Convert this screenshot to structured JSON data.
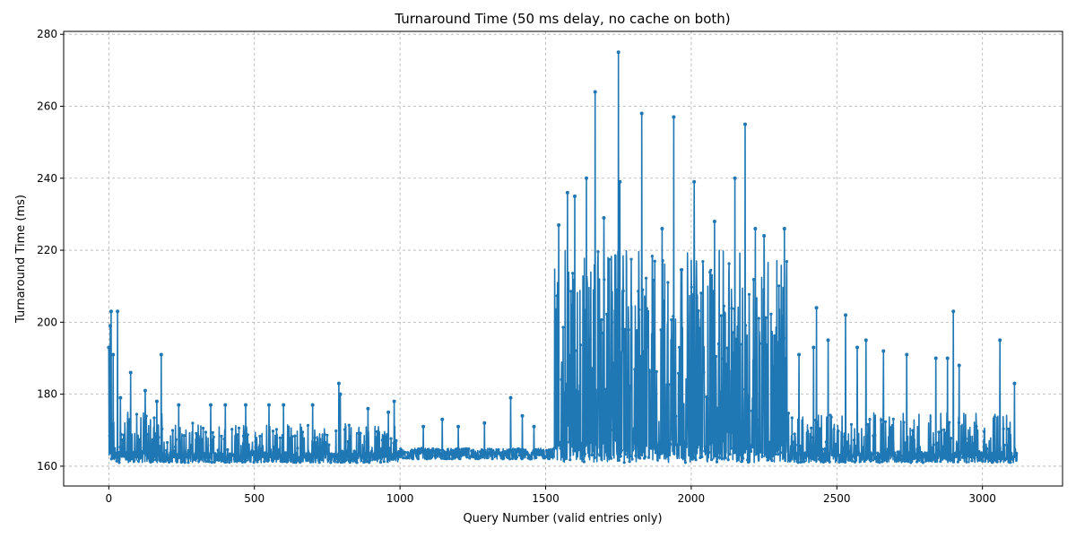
{
  "chart_data": {
    "type": "line",
    "title": "Turnaround Time (50 ms delay, no cache on both)",
    "xlabel": "Query Number (valid entries only)",
    "ylabel": "Turnaround Time (ms)",
    "xlim": [
      -155,
      3275
    ],
    "ylim": [
      154.5,
      280.8
    ],
    "xticks": [
      0,
      500,
      1000,
      1500,
      2000,
      2500,
      3000
    ],
    "yticks": [
      160,
      180,
      200,
      220,
      240,
      260,
      280
    ],
    "grid": true,
    "marker": "circle",
    "color": "#1f77b4",
    "n_points": 3120,
    "series": [
      {
        "segments": [
          {
            "x_start": 0,
            "x_end": 200,
            "base": 161,
            "typical_high": 175,
            "spikes": [
              [
                0,
                193
              ],
              [
                5,
                199
              ],
              [
                8,
                203
              ],
              [
                15,
                191
              ],
              [
                30,
                203
              ],
              [
                40,
                179
              ],
              [
                75,
                186
              ],
              [
                125,
                181
              ],
              [
                180,
                191
              ],
              [
                165,
                178
              ]
            ]
          },
          {
            "x_start": 200,
            "x_end": 1000,
            "base": 161,
            "typical_high": 172,
            "spikes": [
              [
                240,
                177
              ],
              [
                350,
                177
              ],
              [
                400,
                177
              ],
              [
                470,
                177
              ],
              [
                550,
                177
              ],
              [
                600,
                177
              ],
              [
                700,
                177
              ],
              [
                790,
                183
              ],
              [
                795,
                180
              ],
              [
                890,
                176
              ],
              [
                960,
                175
              ],
              [
                980,
                178
              ]
            ]
          },
          {
            "x_start": 1000,
            "x_end": 1530,
            "base": 162,
            "typical_high": 165,
            "spikes": [
              [
                1080,
                171
              ],
              [
                1145,
                173
              ],
              [
                1200,
                171
              ],
              [
                1290,
                172
              ],
              [
                1380,
                179
              ],
              [
                1420,
                174
              ],
              [
                1460,
                171
              ]
            ]
          },
          {
            "x_start": 1530,
            "x_end": 2330,
            "base": 161,
            "typical_high": 220,
            "spikes": [
              [
                1545,
                227
              ],
              [
                1575,
                236
              ],
              [
                1600,
                235
              ],
              [
                1640,
                240
              ],
              [
                1670,
                264
              ],
              [
                1700,
                229
              ],
              [
                1750,
                275
              ],
              [
                1755,
                239
              ],
              [
                1830,
                258
              ],
              [
                1900,
                226
              ],
              [
                1940,
                257
              ],
              [
                2010,
                239
              ],
              [
                2080,
                228
              ],
              [
                2150,
                240
              ],
              [
                2185,
                255
              ],
              [
                2220,
                226
              ],
              [
                2250,
                224
              ],
              [
                2320,
                226
              ]
            ]
          },
          {
            "x_start": 2330,
            "x_end": 3120,
            "base": 161,
            "typical_high": 175,
            "spikes": [
              [
                2370,
                191
              ],
              [
                2420,
                193
              ],
              [
                2430,
                204
              ],
              [
                2470,
                195
              ],
              [
                2530,
                202
              ],
              [
                2570,
                193
              ],
              [
                2600,
                195
              ],
              [
                2660,
                192
              ],
              [
                2740,
                191
              ],
              [
                2840,
                190
              ],
              [
                2880,
                190
              ],
              [
                2900,
                203
              ],
              [
                2920,
                188
              ],
              [
                3060,
                195
              ],
              [
                3110,
                183
              ]
            ]
          }
        ]
      }
    ]
  }
}
